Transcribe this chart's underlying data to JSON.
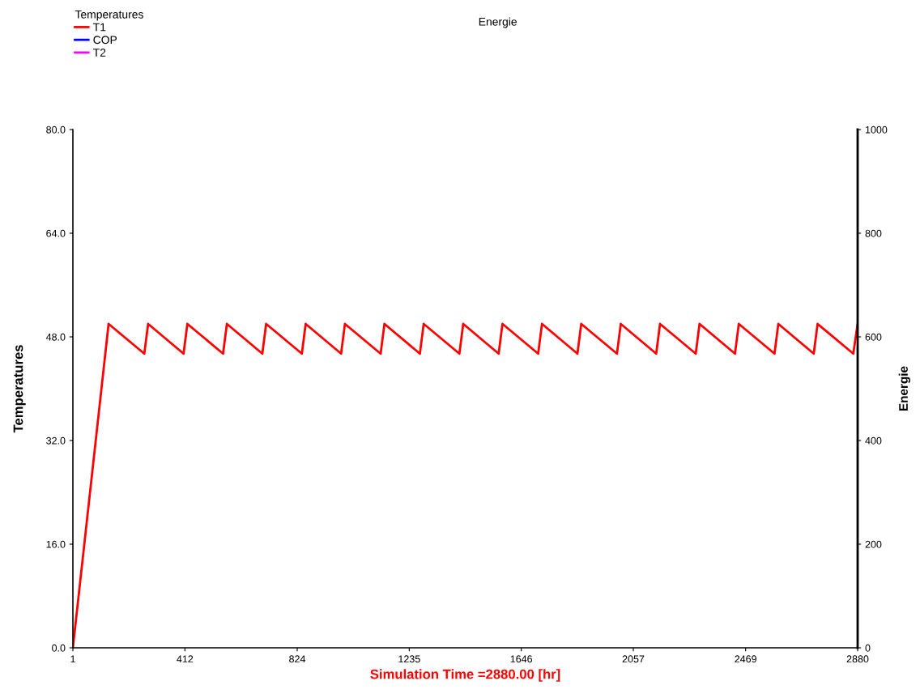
{
  "chart_data": {
    "type": "line",
    "legend_title": "Temperatures",
    "annotations": [
      "Energie"
    ],
    "ylabel": "Temperatures",
    "y2label": "Energie",
    "xlabel": "Simulation Time =2880.00 [hr]",
    "xlim": [
      1,
      2880
    ],
    "xticks": [
      1,
      412,
      824,
      1235,
      1646,
      2057,
      2469,
      2880
    ],
    "ylim": [
      0,
      80
    ],
    "yticks": [
      {
        "value": 0,
        "label": "0.0"
      },
      {
        "value": 16,
        "label": "16.0"
      },
      {
        "value": 32,
        "label": "32.0"
      },
      {
        "value": 48,
        "label": "48.0"
      },
      {
        "value": 64,
        "label": "64.0"
      },
      {
        "value": 80,
        "label": "80.0"
      }
    ],
    "y2lim": [
      0,
      1000
    ],
    "y2ticks": [
      0,
      200,
      400,
      600,
      800,
      1000
    ],
    "legend": "top left",
    "grid": false,
    "marker": "none",
    "line_style": "solid",
    "series": [
      {
        "name": "T1",
        "color": "#ff0000",
        "x": [
          1,
          132,
          263,
          277,
          407,
          421,
          552,
          566,
          696,
          710,
          841,
          855,
          985,
          999,
          1130,
          1144,
          1274,
          1288,
          1419,
          1433,
          1563,
          1577,
          1708,
          1722,
          1852,
          1866,
          1997,
          2011,
          2141,
          2155,
          2286,
          2300,
          2430,
          2444,
          2575,
          2589,
          2719,
          2733,
          2864,
          2880
        ],
        "values": [
          0,
          50.0,
          45.4,
          50.0,
          45.4,
          50.0,
          45.4,
          50.0,
          45.4,
          50.0,
          45.4,
          50.0,
          45.4,
          50.0,
          45.4,
          50.0,
          45.4,
          50.0,
          45.4,
          50.0,
          45.4,
          50.0,
          45.4,
          50.0,
          45.4,
          50.0,
          45.4,
          50.0,
          45.4,
          50.0,
          45.4,
          50.0,
          45.4,
          50.0,
          45.4,
          50.0,
          45.4,
          50.0,
          45.4,
          50.0
        ]
      },
      {
        "name": "COP",
        "color": "#0000ff"
      },
      {
        "name": "T2",
        "color": "#ff00ff"
      }
    ]
  }
}
